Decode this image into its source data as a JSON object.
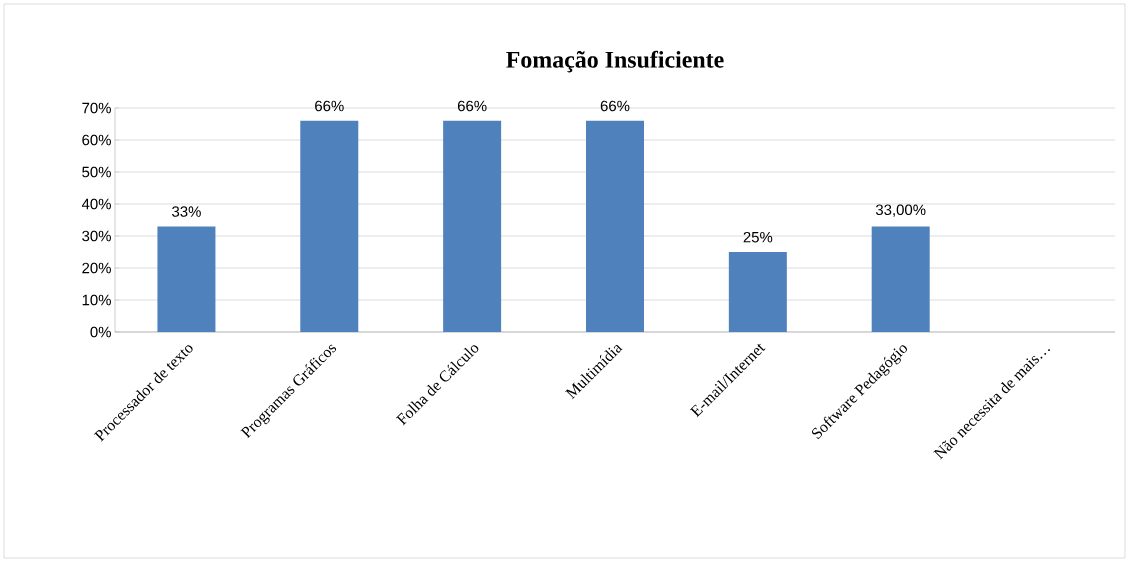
{
  "chart_data": {
    "type": "bar",
    "title": "Fomação Insuficiente",
    "categories": [
      "Processador de texto",
      "Programas Gráficos",
      "Folha de Cálculo",
      "Multimídia",
      "E-mail/Internet",
      "Software Pedagógio",
      "Não necessita de mais…"
    ],
    "values": [
      33,
      66,
      66,
      66,
      25,
      33,
      null
    ],
    "value_labels": [
      "33%",
      "66%",
      "66%",
      "66%",
      "25%",
      "33,00%",
      null
    ],
    "color": "#4f81bd",
    "ylim": [
      0,
      70
    ],
    "yticks": [
      {
        "value": 0,
        "label": "0%"
      },
      {
        "value": 10,
        "label": "10%"
      },
      {
        "value": 20,
        "label": "20%"
      },
      {
        "value": 30,
        "label": "30%"
      },
      {
        "value": 40,
        "label": "40%"
      },
      {
        "value": 50,
        "label": "50%"
      },
      {
        "value": 60,
        "label": "60%"
      },
      {
        "value": 70,
        "label": "70%"
      }
    ],
    "grid": "y"
  }
}
